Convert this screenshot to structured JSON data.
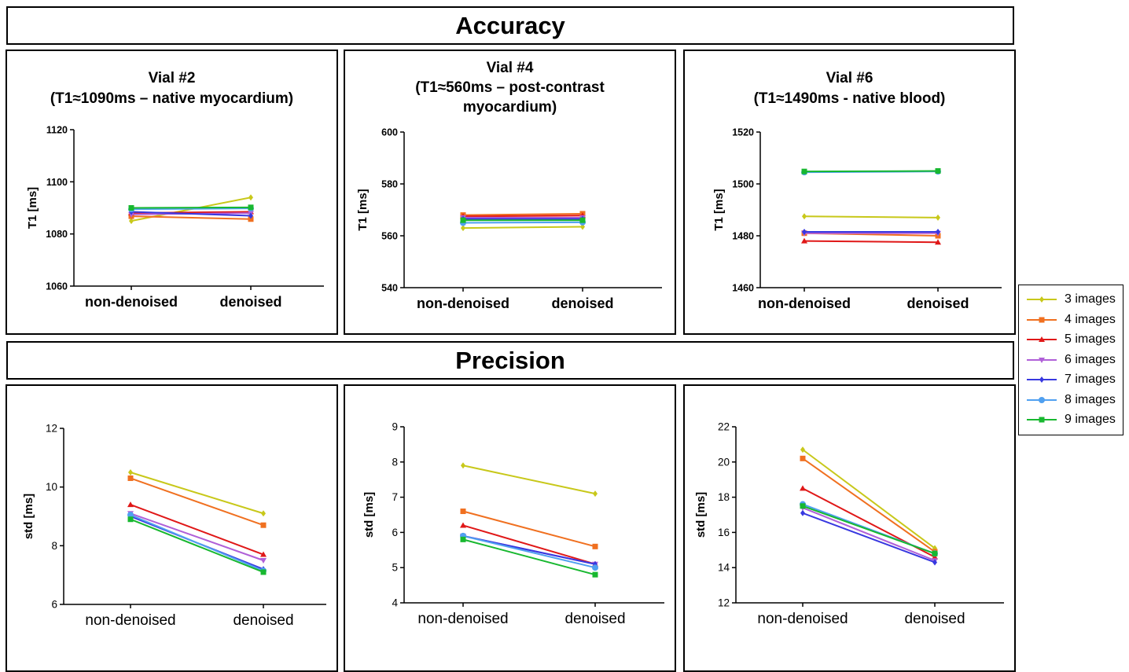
{
  "sections": {
    "accuracy_title": "Accuracy",
    "precision_title": "Precision"
  },
  "legend": [
    {
      "label": "3 images",
      "color": "#c8c81a",
      "marker": "diamond"
    },
    {
      "label": "4 images",
      "color": "#f07020",
      "marker": "square"
    },
    {
      "label": "5 images",
      "color": "#e01818",
      "marker": "triangle"
    },
    {
      "label": "6 images",
      "color": "#b060d8",
      "marker": "triangle-down"
    },
    {
      "label": "7 images",
      "color": "#3838e0",
      "marker": "diamond"
    },
    {
      "label": "8 images",
      "color": "#50a0f0",
      "marker": "circle"
    },
    {
      "label": "9 images",
      "color": "#18b830",
      "marker": "square"
    }
  ],
  "chart_data": [
    {
      "type": "line",
      "title_lines": [
        "Vial #2",
        "(T1≈1090ms – native myocardium)"
      ],
      "ylabel": "T1 [ms]",
      "categories": [
        "non-denoised",
        "denoised"
      ],
      "ylim": [
        1060,
        1120
      ],
      "yticks": [
        "1060",
        "1080",
        "1100",
        "1120"
      ],
      "series": [
        {
          "name": "3 images",
          "values": [
            1085,
            1094
          ]
        },
        {
          "name": "4 images",
          "values": [
            1086.8,
            1085.7
          ]
        },
        {
          "name": "5 images",
          "values": [
            1088,
            1088.5
          ]
        },
        {
          "name": "6 images",
          "values": [
            1087.5,
            1088
          ]
        },
        {
          "name": "7 images",
          "values": [
            1088.5,
            1087
          ]
        },
        {
          "name": "8 images",
          "values": [
            1089.5,
            1089.8
          ]
        },
        {
          "name": "9 images",
          "values": [
            1090,
            1090.2
          ]
        }
      ]
    },
    {
      "type": "line",
      "title_lines": [
        "Vial #4",
        "(T1≈560ms – post-contrast",
        "myocardium)"
      ],
      "ylabel": "T1 [ms]",
      "categories": [
        "non-denoised",
        "denoised"
      ],
      "ylim": [
        540,
        600
      ],
      "yticks": [
        "540",
        "560",
        "580",
        "600"
      ],
      "series": [
        {
          "name": "3 images",
          "values": [
            563,
            563.5
          ]
        },
        {
          "name": "4 images",
          "values": [
            568,
            568.5
          ]
        },
        {
          "name": "5 images",
          "values": [
            567.5,
            567.8
          ]
        },
        {
          "name": "6 images",
          "values": [
            567,
            567
          ]
        },
        {
          "name": "7 images",
          "values": [
            566.5,
            566.5
          ]
        },
        {
          "name": "8 images",
          "values": [
            565,
            565.2
          ]
        },
        {
          "name": "9 images",
          "values": [
            566,
            566
          ]
        }
      ]
    },
    {
      "type": "line",
      "title_lines": [
        "Vial #6",
        "(T1≈1490ms - native blood)"
      ],
      "ylabel": "T1 [ms]",
      "categories": [
        "non-denoised",
        "denoised"
      ],
      "ylim": [
        1460,
        1520
      ],
      "yticks": [
        "1460",
        "1480",
        "1500",
        "1520"
      ],
      "series": [
        {
          "name": "3 images",
          "values": [
            1487.5,
            1487
          ]
        },
        {
          "name": "4 images",
          "values": [
            1481,
            1480
          ]
        },
        {
          "name": "5 images",
          "values": [
            1478,
            1477.5
          ]
        },
        {
          "name": "6 images",
          "values": [
            1481,
            1481
          ]
        },
        {
          "name": "7 images",
          "values": [
            1481.5,
            1481.5
          ]
        },
        {
          "name": "8 images",
          "values": [
            1504.5,
            1504.8
          ]
        },
        {
          "name": "9 images",
          "values": [
            1504.8,
            1505
          ]
        }
      ]
    },
    {
      "type": "line",
      "title_lines": [],
      "ylabel": "std [ms]",
      "categories": [
        "non-denoised",
        "denoised"
      ],
      "ylim": [
        6,
        12
      ],
      "yticks": [
        "6",
        "8",
        "10",
        "12"
      ],
      "series": [
        {
          "name": "3 images",
          "values": [
            10.5,
            9.1
          ]
        },
        {
          "name": "4 images",
          "values": [
            10.3,
            8.7
          ]
        },
        {
          "name": "5 images",
          "values": [
            9.4,
            7.7
          ]
        },
        {
          "name": "6 images",
          "values": [
            9.1,
            7.5
          ]
        },
        {
          "name": "7 images",
          "values": [
            9.0,
            7.2
          ]
        },
        {
          "name": "8 images",
          "values": [
            9.05,
            7.15
          ]
        },
        {
          "name": "9 images",
          "values": [
            8.9,
            7.1
          ]
        }
      ]
    },
    {
      "type": "line",
      "title_lines": [],
      "ylabel": "std [ms]",
      "categories": [
        "non-denoised",
        "denoised"
      ],
      "ylim": [
        4,
        9
      ],
      "yticks": [
        "4",
        "5",
        "6",
        "7",
        "8",
        "9"
      ],
      "series": [
        {
          "name": "3 images",
          "values": [
            7.9,
            7.1
          ]
        },
        {
          "name": "4 images",
          "values": [
            6.6,
            5.6
          ]
        },
        {
          "name": "5 images",
          "values": [
            6.2,
            5.1
          ]
        },
        {
          "name": "6 images",
          "values": [
            5.9,
            5.1
          ]
        },
        {
          "name": "7 images",
          "values": [
            5.9,
            5.1
          ]
        },
        {
          "name": "8 images",
          "values": [
            5.9,
            5.0
          ]
        },
        {
          "name": "9 images",
          "values": [
            5.8,
            4.8
          ]
        }
      ]
    },
    {
      "type": "line",
      "title_lines": [],
      "ylabel": "std [ms]",
      "categories": [
        "non-denoised",
        "denoised"
      ],
      "ylim": [
        12,
        22
      ],
      "yticks": [
        "12",
        "14",
        "16",
        "18",
        "20",
        "22"
      ],
      "series": [
        {
          "name": "3 images",
          "values": [
            20.7,
            15.1
          ]
        },
        {
          "name": "4 images",
          "values": [
            20.2,
            14.9
          ]
        },
        {
          "name": "5 images",
          "values": [
            18.5,
            14.6
          ]
        },
        {
          "name": "6 images",
          "values": [
            17.4,
            14.4
          ]
        },
        {
          "name": "7 images",
          "values": [
            17.1,
            14.3
          ]
        },
        {
          "name": "8 images",
          "values": [
            17.6,
            14.8
          ]
        },
        {
          "name": "9 images",
          "values": [
            17.5,
            14.8
          ]
        }
      ]
    }
  ]
}
